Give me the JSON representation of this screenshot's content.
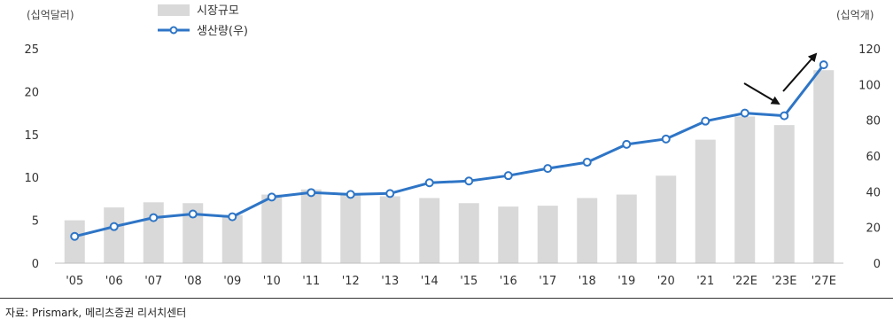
{
  "chart_data": {
    "type": "bar+line",
    "categories": [
      "'05",
      "'06",
      "'07",
      "'08",
      "'09",
      "'10",
      "'11",
      "'12",
      "'13",
      "'14",
      "'15",
      "'16",
      "'17",
      "'18",
      "'19",
      "'20",
      "'21",
      "'22E",
      "'23E",
      "'27E"
    ],
    "series": [
      {
        "name": "시장규모",
        "type": "bar",
        "axis": "left",
        "color": "#d9d9d9",
        "values": [
          5.0,
          6.5,
          7.1,
          7.0,
          5.6,
          8.0,
          8.6,
          8.1,
          7.8,
          7.6,
          7.0,
          6.6,
          6.7,
          7.6,
          8.0,
          10.2,
          14.4,
          17.1,
          16.1,
          22.5
        ]
      },
      {
        "name": "생산량(우)",
        "type": "line",
        "axis": "right",
        "color": "#2e75c6",
        "values": [
          15,
          20.5,
          25.5,
          27.5,
          26,
          37,
          39.5,
          38.5,
          39,
          45,
          46,
          49,
          53,
          56.5,
          66.5,
          69.5,
          79.5,
          84,
          82.5,
          111
        ]
      }
    ],
    "y_left": {
      "unit": "(십억달러)",
      "min": 0,
      "max": 25,
      "ticks": [
        "0",
        "5",
        "10",
        "15",
        "20",
        "25"
      ]
    },
    "y_right": {
      "unit": "(십억개)",
      "min": 0,
      "max": 120,
      "ticks": [
        "0",
        "20",
        "40",
        "60",
        "80",
        "100",
        "120"
      ]
    },
    "legend_position": "top-left",
    "grid": false,
    "annotations": [
      {
        "type": "arrow",
        "direction": "down-right",
        "near": "'23E"
      },
      {
        "type": "arrow",
        "direction": "up-right",
        "near": "'27E"
      }
    ]
  },
  "source": "자료: Prismark, 메리츠증권 리서치센터"
}
